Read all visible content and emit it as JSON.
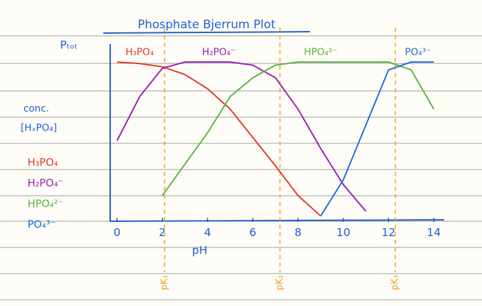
{
  "chart_data": {
    "type": "line",
    "title": "Phosphate Bjerrum Plot",
    "top_label": "Pₜₒₜ",
    "y_label_1": "conc.",
    "y_label_2": "[HₓPO₄]",
    "x_label": "pH",
    "xlim": [
      0,
      14
    ],
    "ylim": [
      0,
      1
    ],
    "xticks": [
      0,
      2,
      4,
      6,
      8,
      10,
      12,
      14
    ],
    "x": [
      0,
      1,
      2,
      3,
      4,
      5,
      6,
      7,
      8,
      9,
      10,
      11,
      12,
      13,
      14
    ],
    "series": [
      {
        "name": "H₃PO₄",
        "color": "#e0392b",
        "values": [
          1,
          0.99,
          0.97,
          0.92,
          0.83,
          0.7,
          0.52,
          0.34,
          0.15,
          0.02,
          null,
          null,
          null,
          null,
          null
        ]
      },
      {
        "name": "H₂PO₄⁻",
        "color": "#9a1fb3",
        "values": [
          0.5,
          0.78,
          0.96,
          1,
          1,
          1,
          0.98,
          0.9,
          0.7,
          0.45,
          0.22,
          0.05,
          null,
          null,
          null
        ]
      },
      {
        "name": "HPO₄²⁻",
        "color": "#5ab33f",
        "values": [
          null,
          null,
          0.15,
          0.35,
          0.55,
          0.78,
          0.9,
          0.98,
          1,
          1,
          1,
          1,
          1,
          0.95,
          0.7
        ]
      },
      {
        "name": "PO₄³⁻",
        "color": "#1f6fd8",
        "values": [
          null,
          null,
          null,
          null,
          null,
          null,
          null,
          null,
          null,
          0.02,
          0.25,
          0.6,
          0.95,
          1,
          1
        ]
      }
    ],
    "pka_values": [
      2.1,
      7.2,
      12.3
    ],
    "pka_labels": [
      "pK₁",
      "pK₂",
      "pK₃"
    ],
    "pka_color": "#f0a01e",
    "axis_color": "#1f5fd0"
  }
}
